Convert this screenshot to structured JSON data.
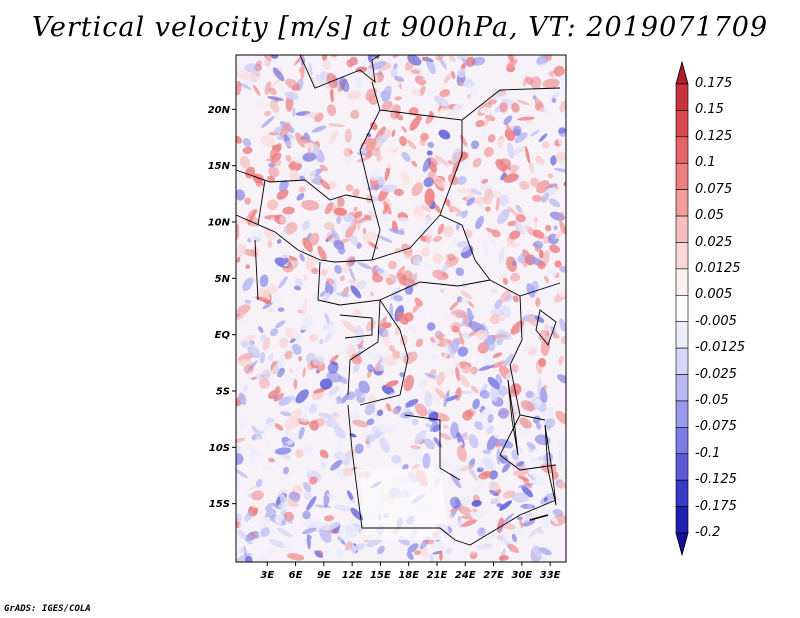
{
  "title": "Vertical velocity [m/s] at 900hPa, VT: 2019071709",
  "footer": "GrADS: IGES/COLA",
  "map": {
    "lat_range": [
      -20,
      25
    ],
    "lon_range": [
      0,
      35
    ],
    "lat_ticks": [
      "20N",
      "15N",
      "10N",
      "5N",
      "EQ",
      "5S",
      "10S",
      "15S"
    ],
    "lon_ticks": [
      "3E",
      "6E",
      "9E",
      "12E",
      "15E",
      "18E",
      "21E",
      "24E",
      "27E",
      "30E",
      "33E"
    ]
  },
  "colorbar": {
    "labels": [
      "0.175",
      "0.15",
      "0.125",
      "0.1",
      "0.075",
      "0.05",
      "0.025",
      "0.0125",
      "0.005",
      "-0.005",
      "-0.0125",
      "-0.025",
      "-0.05",
      "-0.075",
      "-0.1",
      "-0.125",
      "-0.175",
      "-0.2"
    ],
    "colors": [
      "#b01c2a",
      "#c8323c",
      "#d84a50",
      "#e46468",
      "#ec7e80",
      "#f29c9c",
      "#f7bcbc",
      "#fbd8d8",
      "#fdf0f0",
      "#ffffff",
      "#ececfc",
      "#d6d6f8",
      "#b8b8f2",
      "#9a9aec",
      "#7c7ce4",
      "#5c5cd8",
      "#3a3ac8",
      "#2020b0",
      "#12129a"
    ]
  }
}
